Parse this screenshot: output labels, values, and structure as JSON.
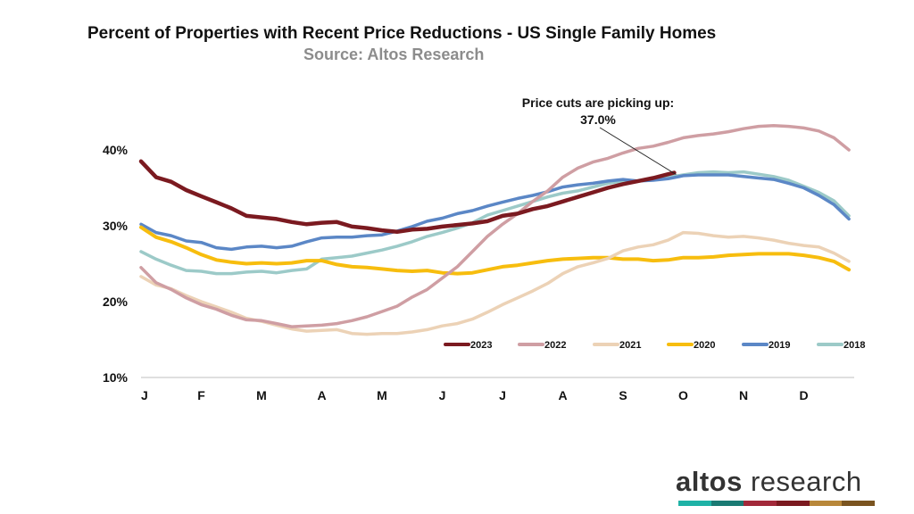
{
  "chart_data": {
    "type": "line",
    "title": "Percent of Properties with Recent Price Reductions - US Single Family Homes",
    "subtitle": "Source: Altos Research",
    "x_ticks": [
      "J",
      "F",
      "M",
      "A",
      "M",
      "J",
      "J",
      "A",
      "S",
      "O",
      "N",
      "D"
    ],
    "y_ticks": [
      "10%",
      "20%",
      "30%",
      "40%"
    ],
    "ylim": [
      10,
      43
    ],
    "y_unit": "%",
    "grid": false,
    "legend_position": "bottom-right, inside plot",
    "x_unit": "month (0 = Jan 1)",
    "annotation": {
      "line1": "Price cuts are picking up:",
      "line2": "37.0%",
      "x": 8.85,
      "y": 37.0
    },
    "series": [
      {
        "name": "2023",
        "color": "#7b1a20",
        "x": [
          0,
          0.25,
          0.5,
          0.75,
          1.0,
          1.25,
          1.5,
          1.75,
          2.0,
          2.25,
          2.5,
          2.75,
          3.0,
          3.25,
          3.5,
          3.75,
          4.0,
          4.25,
          4.5,
          4.75,
          5.0,
          5.25,
          5.5,
          5.75,
          6.0,
          6.25,
          6.5,
          6.75,
          7.0,
          7.25,
          7.5,
          7.75,
          8.0,
          8.25,
          8.5,
          8.75,
          8.85
        ],
        "values": [
          38.5,
          36.4,
          35.8,
          34.7,
          33.9,
          33.1,
          32.3,
          31.3,
          31.1,
          30.9,
          30.5,
          30.2,
          30.4,
          30.5,
          29.9,
          29.7,
          29.4,
          29.2,
          29.5,
          29.6,
          29.9,
          30.1,
          30.3,
          30.6,
          31.3,
          31.6,
          32.2,
          32.6,
          33.2,
          33.8,
          34.4,
          35.0,
          35.5,
          35.9,
          36.3,
          36.8,
          37.0
        ]
      },
      {
        "name": "2022",
        "color": "#cf9ea3",
        "x": [
          0,
          0.25,
          0.5,
          0.75,
          1.0,
          1.25,
          1.5,
          1.75,
          2.0,
          2.25,
          2.5,
          2.75,
          3.0,
          3.25,
          3.5,
          3.75,
          4.0,
          4.25,
          4.5,
          4.75,
          5.0,
          5.25,
          5.5,
          5.75,
          6.0,
          6.25,
          6.5,
          6.75,
          7.0,
          7.25,
          7.5,
          7.75,
          8.0,
          8.25,
          8.5,
          8.75,
          9.0,
          9.25,
          9.5,
          9.75,
          10.0,
          10.25,
          10.5,
          10.75,
          11.0,
          11.25,
          11.5,
          11.75
        ],
        "values": [
          24.5,
          22.5,
          21.6,
          20.5,
          19.6,
          19.0,
          18.2,
          17.6,
          17.5,
          17.1,
          16.7,
          16.8,
          16.9,
          17.1,
          17.5,
          18.0,
          18.7,
          19.4,
          20.6,
          21.6,
          23.1,
          24.6,
          26.6,
          28.6,
          30.2,
          31.6,
          33.2,
          34.6,
          36.4,
          37.6,
          38.4,
          38.9,
          39.6,
          40.2,
          40.5,
          41.0,
          41.6,
          41.9,
          42.1,
          42.4,
          42.8,
          43.1,
          43.2,
          43.1,
          42.9,
          42.5,
          41.6,
          40.0
        ]
      },
      {
        "name": "2021",
        "color": "#ecd2b6",
        "x": [
          0,
          0.25,
          0.5,
          0.75,
          1.0,
          1.25,
          1.5,
          1.75,
          2.0,
          2.25,
          2.5,
          2.75,
          3.0,
          3.25,
          3.5,
          3.75,
          4.0,
          4.25,
          4.5,
          4.75,
          5.0,
          5.25,
          5.5,
          5.75,
          6.0,
          6.25,
          6.5,
          6.75,
          7.0,
          7.25,
          7.5,
          7.75,
          8.0,
          8.25,
          8.5,
          8.75,
          9.0,
          9.25,
          9.5,
          9.75,
          10.0,
          10.25,
          10.5,
          10.75,
          11.0,
          11.25,
          11.5,
          11.75
        ],
        "values": [
          23.3,
          22.2,
          21.7,
          20.8,
          20.0,
          19.3,
          18.6,
          17.8,
          17.4,
          16.9,
          16.4,
          16.1,
          16.2,
          16.3,
          15.8,
          15.7,
          15.8,
          15.8,
          16.0,
          16.3,
          16.8,
          17.1,
          17.7,
          18.6,
          19.6,
          20.5,
          21.4,
          22.4,
          23.7,
          24.6,
          25.1,
          25.7,
          26.7,
          27.2,
          27.5,
          28.1,
          29.1,
          29.0,
          28.7,
          28.5,
          28.6,
          28.4,
          28.1,
          27.7,
          27.4,
          27.2,
          26.4,
          25.3
        ]
      },
      {
        "name": "2020",
        "color": "#f7bd0e",
        "x": [
          0,
          0.25,
          0.5,
          0.75,
          1.0,
          1.25,
          1.5,
          1.75,
          2.0,
          2.25,
          2.5,
          2.75,
          3.0,
          3.25,
          3.5,
          3.75,
          4.0,
          4.25,
          4.5,
          4.75,
          5.0,
          5.25,
          5.5,
          5.75,
          6.0,
          6.25,
          6.5,
          6.75,
          7.0,
          7.25,
          7.5,
          7.75,
          8.0,
          8.25,
          8.5,
          8.75,
          9.0,
          9.25,
          9.5,
          9.75,
          10.0,
          10.25,
          10.5,
          10.75,
          11.0,
          11.25,
          11.5,
          11.75
        ],
        "values": [
          29.8,
          28.5,
          27.9,
          27.1,
          26.2,
          25.5,
          25.2,
          25.0,
          25.1,
          25.0,
          25.1,
          25.4,
          25.4,
          24.9,
          24.6,
          24.5,
          24.3,
          24.1,
          24.0,
          24.1,
          23.8,
          23.7,
          23.8,
          24.2,
          24.6,
          24.8,
          25.1,
          25.4,
          25.6,
          25.7,
          25.8,
          25.8,
          25.6,
          25.6,
          25.4,
          25.5,
          25.8,
          25.8,
          25.9,
          26.1,
          26.2,
          26.3,
          26.3,
          26.3,
          26.1,
          25.8,
          25.3,
          24.2
        ]
      },
      {
        "name": "2019",
        "color": "#5b87c6",
        "x": [
          0,
          0.25,
          0.5,
          0.75,
          1.0,
          1.25,
          1.5,
          1.75,
          2.0,
          2.25,
          2.5,
          2.75,
          3.0,
          3.25,
          3.5,
          3.75,
          4.0,
          4.25,
          4.5,
          4.75,
          5.0,
          5.25,
          5.5,
          5.75,
          6.0,
          6.25,
          6.5,
          6.75,
          7.0,
          7.25,
          7.5,
          7.75,
          8.0,
          8.25,
          8.5,
          8.75,
          9.0,
          9.25,
          9.5,
          9.75,
          10.0,
          10.25,
          10.5,
          10.75,
          11.0,
          11.25,
          11.5,
          11.75
        ],
        "values": [
          30.2,
          29.1,
          28.7,
          28.0,
          27.8,
          27.1,
          26.9,
          27.2,
          27.3,
          27.1,
          27.3,
          27.9,
          28.4,
          28.5,
          28.5,
          28.7,
          28.8,
          29.3,
          29.9,
          30.6,
          31.0,
          31.6,
          32.0,
          32.6,
          33.1,
          33.6,
          34.0,
          34.5,
          35.1,
          35.4,
          35.6,
          35.9,
          36.1,
          35.9,
          36.0,
          36.2,
          36.6,
          36.7,
          36.7,
          36.7,
          36.5,
          36.3,
          36.1,
          35.6,
          35.0,
          34.0,
          32.8,
          30.9
        ]
      },
      {
        "name": "2018",
        "color": "#9ccac8",
        "x": [
          0,
          0.25,
          0.5,
          0.75,
          1.0,
          1.25,
          1.5,
          1.75,
          2.0,
          2.25,
          2.5,
          2.75,
          3.0,
          3.25,
          3.5,
          3.75,
          4.0,
          4.25,
          4.5,
          4.75,
          5.0,
          5.25,
          5.5,
          5.75,
          6.0,
          6.25,
          6.5,
          6.75,
          7.0,
          7.25,
          7.5,
          7.75,
          8.0,
          8.25,
          8.5,
          8.75,
          9.0,
          9.25,
          9.5,
          9.75,
          10.0,
          10.25,
          10.5,
          10.75,
          11.0,
          11.25,
          11.5,
          11.75
        ],
        "values": [
          26.6,
          25.6,
          24.8,
          24.1,
          24.0,
          23.7,
          23.7,
          23.9,
          24.0,
          23.8,
          24.1,
          24.3,
          25.6,
          25.8,
          26.0,
          26.4,
          26.8,
          27.3,
          27.9,
          28.6,
          29.1,
          29.7,
          30.4,
          31.4,
          32.0,
          32.6,
          33.2,
          33.8,
          34.3,
          34.6,
          35.1,
          35.6,
          35.9,
          35.9,
          36.1,
          36.4,
          36.7,
          37.0,
          37.1,
          37.0,
          37.1,
          36.8,
          36.5,
          36.0,
          35.2,
          34.4,
          33.3,
          31.3
        ]
      }
    ]
  },
  "logo": {
    "part1": "altos",
    "part2": " research",
    "bar_colors": [
      "#1fb2a6",
      "#1a7a73",
      "#a2293a",
      "#7b1a20",
      "#b8873a",
      "#7a5420"
    ]
  }
}
